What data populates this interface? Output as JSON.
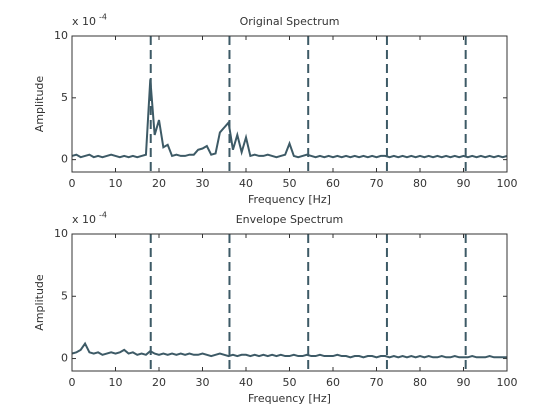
{
  "chart_data": [
    {
      "type": "line",
      "title": "Original Spectrum",
      "x_label": "Frequency [Hz]",
      "y_label": "Amplitude",
      "y_scale_label": "x 10",
      "y_scale_exponent": "-4",
      "xlim": [
        0,
        100
      ],
      "xticks": [
        0,
        10,
        20,
        30,
        40,
        50,
        60,
        70,
        80,
        90,
        100
      ],
      "ylim": [
        -1,
        10
      ],
      "yticks": [
        0,
        5,
        10
      ],
      "vlines": [
        18.1,
        36.2,
        54.3,
        72.4,
        90.5
      ],
      "vline_style": "dashed",
      "x": [
        0,
        1,
        2,
        3,
        4,
        5,
        6,
        7,
        8,
        9,
        10,
        11,
        12,
        13,
        14,
        15,
        16,
        17,
        18,
        19,
        20,
        21,
        22,
        23,
        24,
        25,
        26,
        27,
        28,
        29,
        30,
        31,
        32,
        33,
        34,
        35,
        36,
        37,
        38,
        39,
        40,
        41,
        42,
        43,
        44,
        45,
        46,
        47,
        48,
        49,
        50,
        51,
        52,
        53,
        54,
        55,
        56,
        57,
        58,
        59,
        60,
        61,
        62,
        63,
        64,
        65,
        66,
        67,
        68,
        69,
        70,
        71,
        72,
        73,
        74,
        75,
        76,
        77,
        78,
        79,
        80,
        81,
        82,
        83,
        84,
        85,
        86,
        87,
        88,
        89,
        90,
        91,
        92,
        93,
        94,
        95,
        96,
        97,
        98,
        99,
        100
      ],
      "series": [
        {
          "color": "#3d5a66",
          "values": [
            0.3,
            0.4,
            0.2,
            0.3,
            0.4,
            0.2,
            0.3,
            0.2,
            0.3,
            0.4,
            0.3,
            0.2,
            0.3,
            0.2,
            0.3,
            0.2,
            0.3,
            0.4,
            6.5,
            2.0,
            3.2,
            1.0,
            1.2,
            0.3,
            0.4,
            0.3,
            0.3,
            0.4,
            0.4,
            0.8,
            0.9,
            1.1,
            0.4,
            0.5,
            2.2,
            2.6,
            3.0,
            0.8,
            2.0,
            0.6,
            1.8,
            0.3,
            0.4,
            0.3,
            0.3,
            0.4,
            0.3,
            0.2,
            0.3,
            0.4,
            1.3,
            0.3,
            0.2,
            0.3,
            0.4,
            0.3,
            0.2,
            0.3,
            0.2,
            0.3,
            0.2,
            0.3,
            0.2,
            0.3,
            0.2,
            0.3,
            0.2,
            0.3,
            0.2,
            0.3,
            0.2,
            0.3,
            0.3,
            0.2,
            0.3,
            0.2,
            0.3,
            0.2,
            0.3,
            0.2,
            0.3,
            0.2,
            0.3,
            0.2,
            0.3,
            0.2,
            0.3,
            0.2,
            0.3,
            0.2,
            0.3,
            0.2,
            0.3,
            0.2,
            0.3,
            0.2,
            0.3,
            0.2,
            0.3,
            0.2,
            0.3
          ]
        }
      ]
    },
    {
      "type": "line",
      "title": "Envelope Spectrum",
      "x_label": "Frequency [Hz]",
      "y_label": "Amplitude",
      "y_scale_label": "x 10",
      "y_scale_exponent": "-4",
      "xlim": [
        0,
        100
      ],
      "xticks": [
        0,
        10,
        20,
        30,
        40,
        50,
        60,
        70,
        80,
        90,
        100
      ],
      "ylim": [
        -1,
        10
      ],
      "yticks": [
        0,
        5,
        10
      ],
      "vlines": [
        18.1,
        36.2,
        54.3,
        72.4,
        90.5
      ],
      "vline_style": "dashed",
      "x": [
        0,
        1,
        2,
        3,
        4,
        5,
        6,
        7,
        8,
        9,
        10,
        11,
        12,
        13,
        14,
        15,
        16,
        17,
        18,
        19,
        20,
        21,
        22,
        23,
        24,
        25,
        26,
        27,
        28,
        29,
        30,
        31,
        32,
        33,
        34,
        35,
        36,
        37,
        38,
        39,
        40,
        41,
        42,
        43,
        44,
        45,
        46,
        47,
        48,
        49,
        50,
        51,
        52,
        53,
        54,
        55,
        56,
        57,
        58,
        59,
        60,
        61,
        62,
        63,
        64,
        65,
        66,
        67,
        68,
        69,
        70,
        71,
        72,
        73,
        74,
        75,
        76,
        77,
        78,
        79,
        80,
        81,
        82,
        83,
        84,
        85,
        86,
        87,
        88,
        89,
        90,
        91,
        92,
        93,
        94,
        95,
        96,
        97,
        98,
        99,
        100
      ],
      "series": [
        {
          "color": "#3d5a66",
          "values": [
            0.4,
            0.5,
            0.7,
            1.2,
            0.5,
            0.4,
            0.5,
            0.3,
            0.4,
            0.5,
            0.4,
            0.5,
            0.7,
            0.4,
            0.5,
            0.3,
            0.4,
            0.3,
            0.6,
            0.4,
            0.3,
            0.4,
            0.3,
            0.4,
            0.3,
            0.4,
            0.3,
            0.4,
            0.3,
            0.3,
            0.4,
            0.3,
            0.2,
            0.3,
            0.4,
            0.3,
            0.2,
            0.3,
            0.2,
            0.3,
            0.3,
            0.2,
            0.3,
            0.2,
            0.3,
            0.2,
            0.3,
            0.2,
            0.3,
            0.2,
            0.2,
            0.3,
            0.2,
            0.2,
            0.3,
            0.2,
            0.2,
            0.3,
            0.2,
            0.2,
            0.2,
            0.3,
            0.2,
            0.2,
            0.1,
            0.2,
            0.2,
            0.1,
            0.2,
            0.2,
            0.1,
            0.2,
            0.2,
            0.1,
            0.2,
            0.1,
            0.2,
            0.1,
            0.2,
            0.1,
            0.2,
            0.1,
            0.2,
            0.1,
            0.1,
            0.2,
            0.1,
            0.1,
            0.2,
            0.1,
            0.1,
            0.1,
            0.2,
            0.1,
            0.1,
            0.1,
            0.2,
            0.1,
            0.1,
            0.1,
            0.1
          ]
        }
      ]
    }
  ]
}
